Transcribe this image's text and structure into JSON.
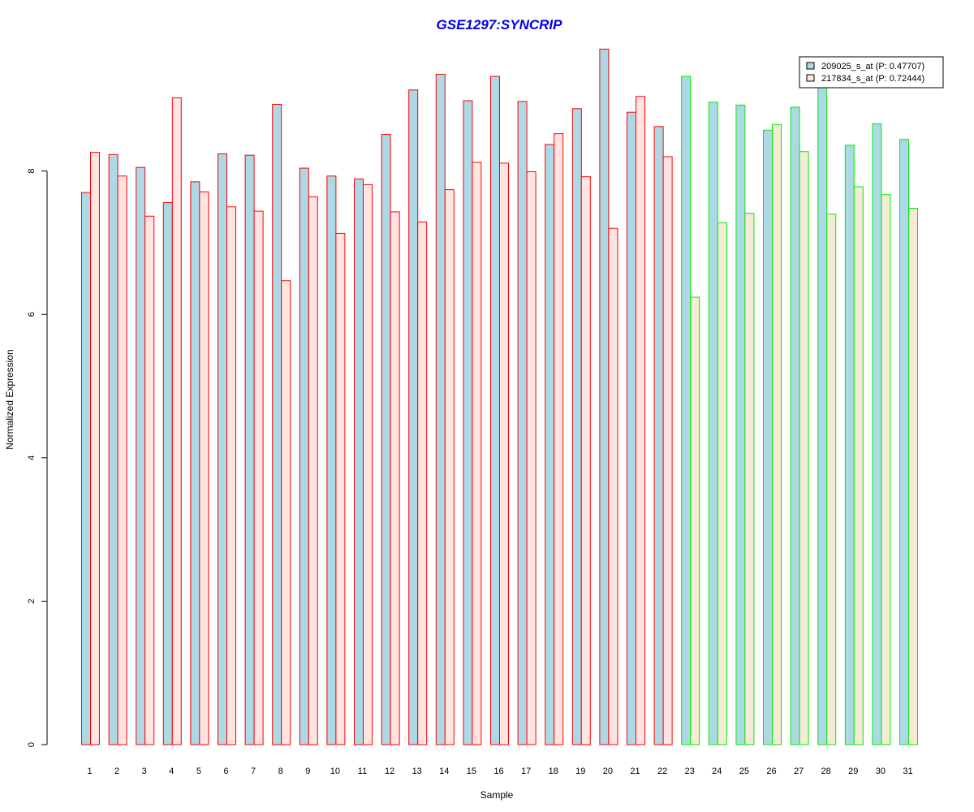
{
  "chart_data": {
    "type": "bar",
    "title": "GSE1297:SYNCRIP",
    "xlabel": "Sample",
    "ylabel": "Normalized Expression",
    "ylim": [
      0,
      9.7
    ],
    "yticks": [
      0,
      2,
      4,
      6,
      8
    ],
    "grid": false,
    "legend_position": "top-right",
    "categories": [
      "1",
      "2",
      "3",
      "4",
      "5",
      "6",
      "7",
      "8",
      "9",
      "10",
      "11",
      "12",
      "13",
      "14",
      "15",
      "16",
      "17",
      "18",
      "19",
      "20",
      "21",
      "22",
      "23",
      "24",
      "25",
      "26",
      "27",
      "28",
      "29",
      "30",
      "31"
    ],
    "series": [
      {
        "name": "209025_s_at (P: 0.47707)",
        "values": [
          7.7,
          8.23,
          8.05,
          7.56,
          7.85,
          8.24,
          8.22,
          8.93,
          8.04,
          7.93,
          7.89,
          8.51,
          9.13,
          9.35,
          8.98,
          9.32,
          8.97,
          8.37,
          8.87,
          9.7,
          8.82,
          8.62,
          9.32,
          8.96,
          8.92,
          8.57,
          8.89,
          9.22,
          8.36,
          8.66,
          8.44
        ]
      },
      {
        "name": "217834_s_at (P: 0.72444)",
        "values": [
          8.26,
          7.93,
          7.37,
          9.02,
          7.71,
          7.5,
          7.44,
          6.47,
          7.64,
          7.13,
          7.81,
          7.43,
          7.29,
          7.74,
          8.12,
          8.11,
          7.99,
          8.52,
          7.92,
          7.2,
          9.04,
          8.2,
          6.24,
          7.28,
          7.41,
          8.65,
          8.27,
          7.4,
          7.78,
          7.67,
          7.48
        ]
      }
    ],
    "colors": {
      "series1_fill": "#add8e6",
      "series2_fill": "#ffe4e1",
      "series2_fill_group2": "#f5ebd7",
      "group1_border": "#ff0000",
      "group2_border": "#00ee00",
      "title_color": "#0000ee"
    },
    "group2_start_index": 22
  }
}
